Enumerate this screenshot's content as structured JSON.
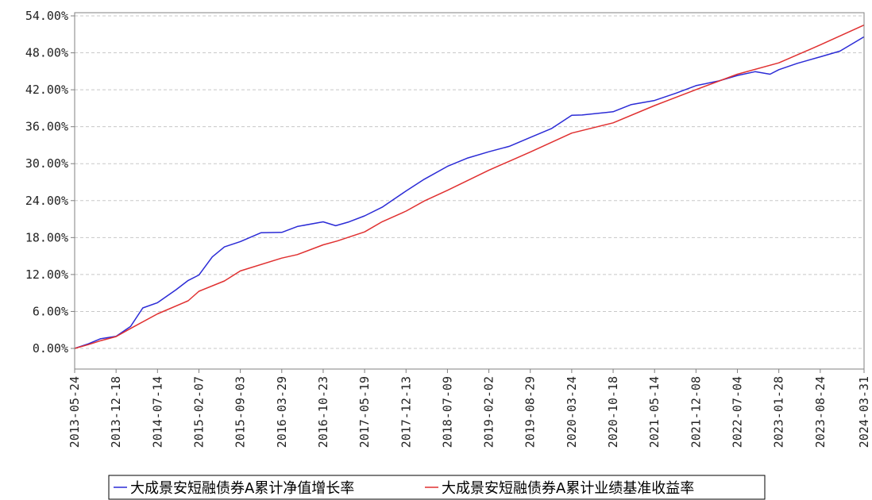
{
  "chart_data": {
    "type": "line",
    "title": "",
    "xlabel": "",
    "ylabel": "",
    "ylim": [
      0,
      54
    ],
    "yticks": [
      "0.00%",
      "6.00%",
      "12.00%",
      "18.00%",
      "24.00%",
      "30.00%",
      "36.00%",
      "42.00%",
      "48.00%",
      "54.00%"
    ],
    "grid": true,
    "legend_position": "bottom",
    "x_tick_labels": [
      "2013-05-24",
      "2013-12-18",
      "2014-07-14",
      "2015-02-07",
      "2015-09-03",
      "2016-03-29",
      "2016-10-23",
      "2017-05-19",
      "2017-12-13",
      "2018-07-09",
      "2019-02-02",
      "2019-08-29",
      "2020-03-24",
      "2020-10-18",
      "2021-05-14",
      "2021-12-08",
      "2022-07-04",
      "2023-01-28",
      "2023-08-24",
      "2024-03-31"
    ],
    "series": [
      {
        "name": "大成景安短融债券A累计净值增长率",
        "color": "#2b2bd6",
        "x": [
          "2013-05-24",
          "2013-08-01",
          "2013-10-01",
          "2013-12-18",
          "2014-03-01",
          "2014-05-01",
          "2014-07-14",
          "2014-10-15",
          "2014-12-15",
          "2015-02-07",
          "2015-04-15",
          "2015-06-15",
          "2015-09-03",
          "2015-12-15",
          "2016-03-29",
          "2016-06-15",
          "2016-10-23",
          "2016-12-25",
          "2017-03-01",
          "2017-05-19",
          "2017-08-15",
          "2017-12-13",
          "2018-03-15",
          "2018-07-09",
          "2018-10-15",
          "2019-02-02",
          "2019-05-15",
          "2019-08-29",
          "2019-12-15",
          "2020-03-24",
          "2020-05-15",
          "2020-10-18",
          "2021-01-15",
          "2021-05-14",
          "2021-09-01",
          "2021-12-08",
          "2022-04-01",
          "2022-07-04",
          "2022-10-01",
          "2022-12-15",
          "2023-01-28",
          "2023-05-01",
          "2023-08-24",
          "2023-12-01",
          "2024-03-31"
        ],
        "values": [
          0.0,
          0.8,
          1.5,
          2.0,
          3.6,
          6.5,
          7.5,
          9.5,
          11.0,
          12.0,
          14.8,
          16.5,
          17.4,
          18.7,
          18.9,
          19.8,
          20.5,
          20.0,
          20.5,
          21.5,
          23.0,
          25.5,
          27.5,
          29.6,
          30.8,
          32.0,
          32.8,
          34.2,
          35.8,
          37.8,
          37.9,
          38.5,
          39.5,
          40.3,
          41.5,
          42.6,
          43.5,
          44.3,
          44.9,
          44.6,
          45.2,
          46.3,
          47.4,
          48.2,
          50.6
        ]
      },
      {
        "name": "大成景安短融债券A累计业绩基准收益率",
        "color": "#e03030",
        "x": [
          "2013-05-24",
          "2013-08-01",
          "2013-10-01",
          "2013-12-18",
          "2014-03-01",
          "2014-07-14",
          "2014-12-15",
          "2015-02-07",
          "2015-06-15",
          "2015-09-03",
          "2016-03-29",
          "2016-06-15",
          "2016-10-23",
          "2017-01-01",
          "2017-05-19",
          "2017-08-15",
          "2017-12-13",
          "2018-03-15",
          "2018-07-09",
          "2019-02-02",
          "2019-08-29",
          "2020-03-24",
          "2020-10-18",
          "2021-05-14",
          "2021-12-08",
          "2022-07-04",
          "2023-01-28",
          "2023-08-24",
          "2024-03-31"
        ],
        "values": [
          0.0,
          0.6,
          1.2,
          2.0,
          3.2,
          5.6,
          7.8,
          9.2,
          11.0,
          12.6,
          14.6,
          15.3,
          16.8,
          17.4,
          19.0,
          20.5,
          22.3,
          24.0,
          25.6,
          29.0,
          31.9,
          34.9,
          36.7,
          39.4,
          42.0,
          44.6,
          46.3,
          49.3,
          52.5
        ]
      }
    ]
  }
}
